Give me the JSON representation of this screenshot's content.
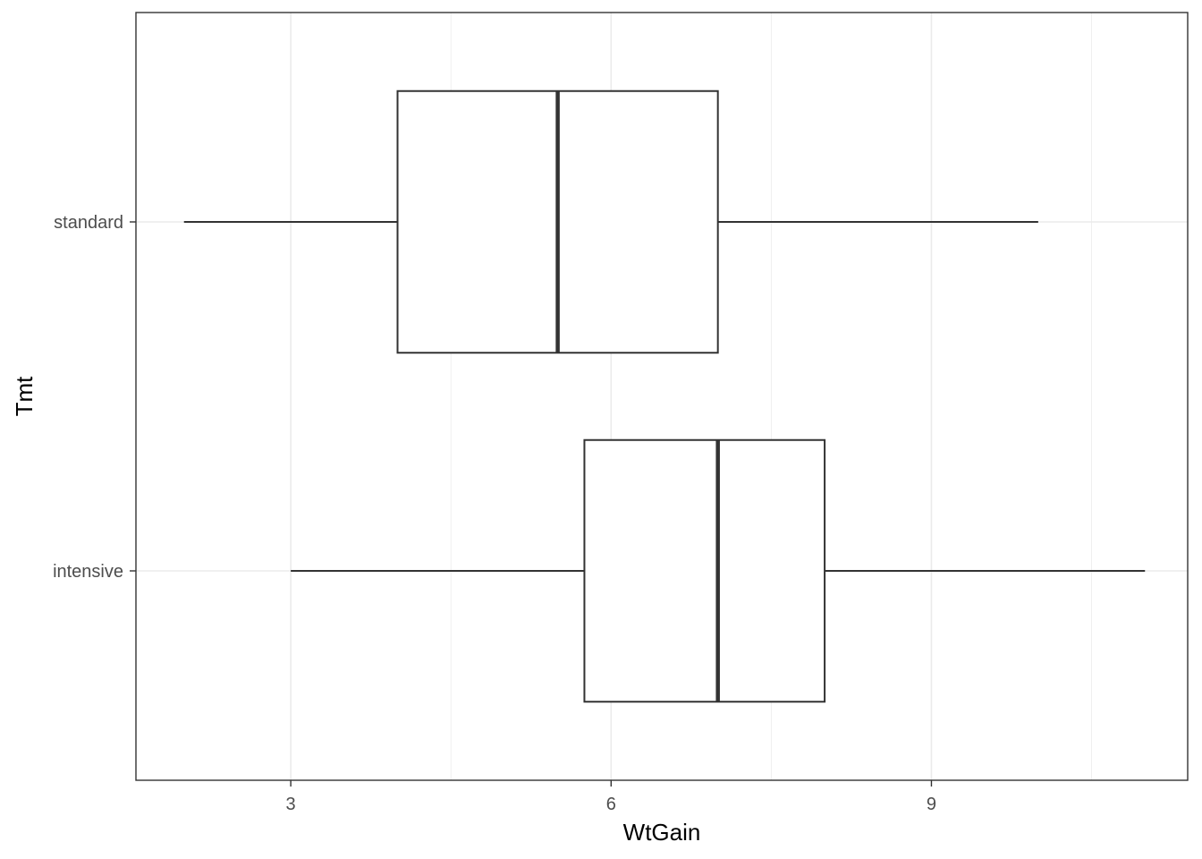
{
  "chart_data": {
    "type": "boxplot",
    "orientation": "horizontal",
    "xlabel": "WtGain",
    "ylabel": "Tmt",
    "xlim": [
      1.55,
      11.4
    ],
    "x_ticks": [
      3,
      6,
      9
    ],
    "x_tick_labels": [
      "3",
      "6",
      "9"
    ],
    "categories": [
      "intensive",
      "standard"
    ],
    "boxes": [
      {
        "category": "intensive",
        "min": 3,
        "q1": 5.75,
        "median": 7,
        "q3": 8,
        "max": 11
      },
      {
        "category": "standard",
        "min": 2,
        "q1": 4,
        "median": 5.5,
        "q3": 7,
        "max": 10
      }
    ],
    "grid": true,
    "legend": "none",
    "colors": {
      "box_stroke": "#333333",
      "box_fill": "#ffffff",
      "grid": "#ebebeb",
      "panel_border": "#333333"
    }
  }
}
